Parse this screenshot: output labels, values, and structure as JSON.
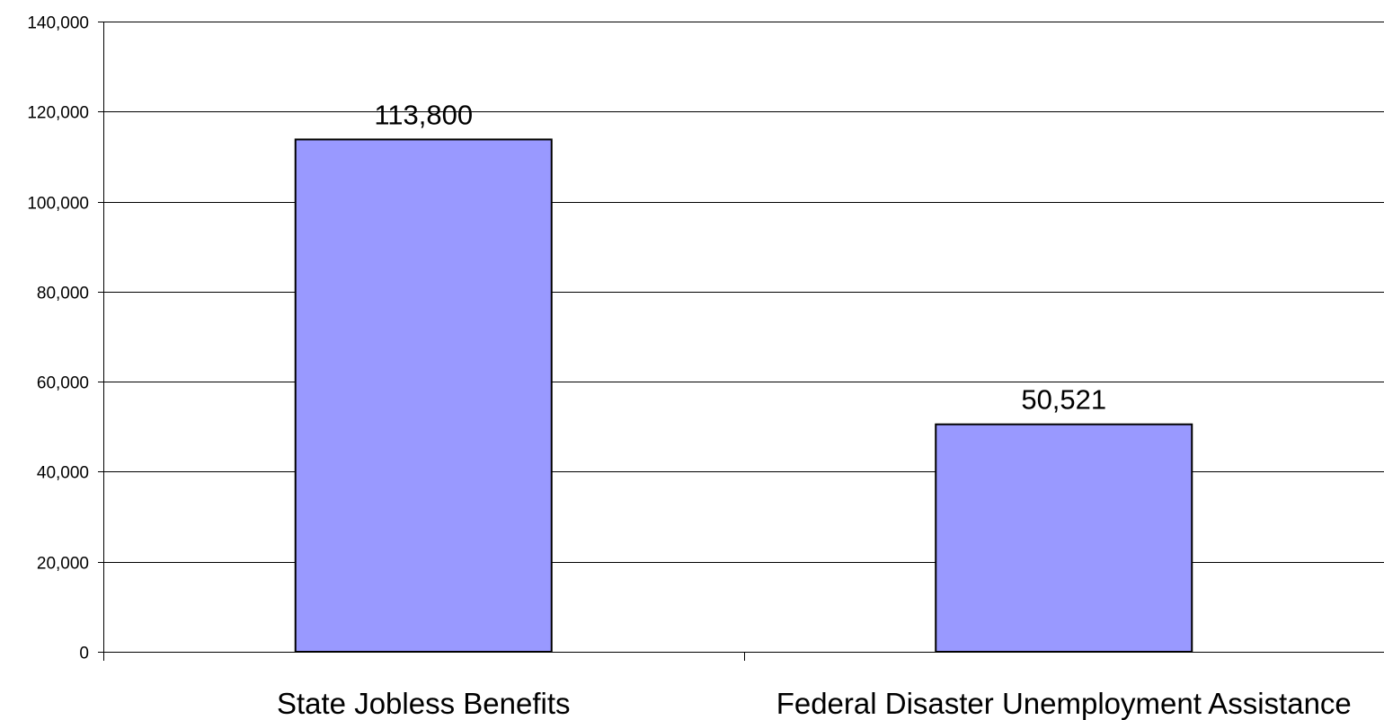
{
  "chart_data": {
    "type": "bar",
    "title": "",
    "xlabel": "",
    "ylabel": "",
    "categories": [
      "State Jobless Benefits",
      "Federal Disaster Unemployment Assistance"
    ],
    "values": [
      113800,
      50521
    ],
    "data_labels": [
      "113,800",
      "50,521"
    ],
    "ylim": [
      0,
      140000
    ],
    "y_ticks": [
      0,
      20000,
      40000,
      60000,
      80000,
      100000,
      120000,
      140000
    ],
    "y_tick_labels": [
      "0",
      "20,000",
      "40,000",
      "60,000",
      "80,000",
      "100,000",
      "120,000",
      "140,000"
    ],
    "grid": true,
    "legend": "none",
    "bar_color": "#9999ff",
    "bar_edge_color": "#000000"
  }
}
